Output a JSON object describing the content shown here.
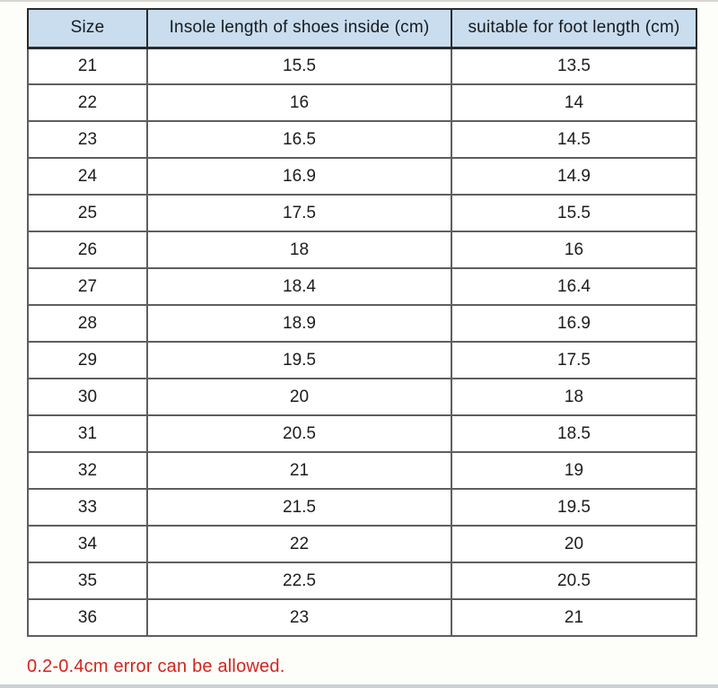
{
  "table": {
    "columns": [
      "Size",
      "Insole length of shoes inside (cm)",
      "suitable for foot length (cm)"
    ],
    "rows": [
      {
        "size": "21",
        "insole_cm": "15.5",
        "foot_cm": "13.5"
      },
      {
        "size": "22",
        "insole_cm": "16",
        "foot_cm": "14"
      },
      {
        "size": "23",
        "insole_cm": "16.5",
        "foot_cm": "14.5"
      },
      {
        "size": "24",
        "insole_cm": "16.9",
        "foot_cm": "14.9"
      },
      {
        "size": "25",
        "insole_cm": "17.5",
        "foot_cm": "15.5"
      },
      {
        "size": "26",
        "insole_cm": "18",
        "foot_cm": "16"
      },
      {
        "size": "27",
        "insole_cm": "18.4",
        "foot_cm": "16.4"
      },
      {
        "size": "28",
        "insole_cm": "18.9",
        "foot_cm": "16.9"
      },
      {
        "size": "29",
        "insole_cm": "19.5",
        "foot_cm": "17.5"
      },
      {
        "size": "30",
        "insole_cm": "20",
        "foot_cm": "18"
      },
      {
        "size": "31",
        "insole_cm": "20.5",
        "foot_cm": "18.5"
      },
      {
        "size": "32",
        "insole_cm": "21",
        "foot_cm": "19"
      },
      {
        "size": "33",
        "insole_cm": "21.5",
        "foot_cm": "19.5"
      },
      {
        "size": "34",
        "insole_cm": "22",
        "foot_cm": "20"
      },
      {
        "size": "35",
        "insole_cm": "22.5",
        "foot_cm": "20.5"
      },
      {
        "size": "36",
        "insole_cm": "23",
        "foot_cm": "21"
      }
    ]
  },
  "note": {
    "text": "0.2-0.4cm error can be allowed."
  },
  "colors": {
    "header_bg": "#c9ddef",
    "border_dark": "#2b2b2b",
    "border_mid": "#5e5e5e",
    "text": "#1c1c1c",
    "note_red": "#d2251e"
  },
  "chart_data": {
    "type": "table",
    "title": "",
    "columns": [
      "Size",
      "Insole length of shoes inside (cm)",
      "suitable for foot length (cm)"
    ],
    "rows": [
      [
        21,
        15.5,
        13.5
      ],
      [
        22,
        16,
        14
      ],
      [
        23,
        16.5,
        14.5
      ],
      [
        24,
        16.9,
        14.9
      ],
      [
        25,
        17.5,
        15.5
      ],
      [
        26,
        18,
        16
      ],
      [
        27,
        18.4,
        16.4
      ],
      [
        28,
        18.9,
        16.9
      ],
      [
        29,
        19.5,
        17.5
      ],
      [
        30,
        20,
        18
      ],
      [
        31,
        20.5,
        18.5
      ],
      [
        32,
        21,
        19
      ],
      [
        33,
        21.5,
        19.5
      ],
      [
        34,
        22,
        20
      ],
      [
        35,
        22.5,
        20.5
      ],
      [
        36,
        23,
        21
      ]
    ],
    "annotations": [
      "0.2-0.4cm error can be allowed."
    ],
    "legend_position": "none",
    "grid": true
  }
}
